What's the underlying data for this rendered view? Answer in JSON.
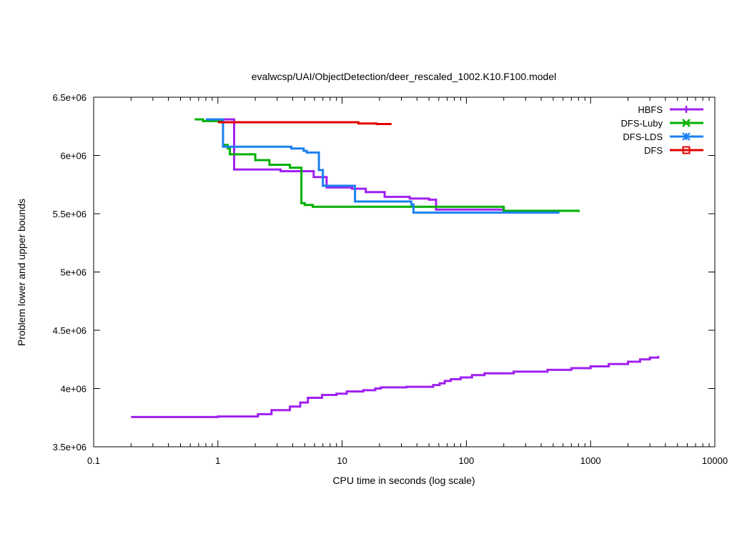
{
  "chart_data": {
    "type": "line",
    "title": "evalwcsp/UAI/ObjectDetection/deer_rescaled_1002.K10.F100.model",
    "xlabel": "CPU time in seconds (log scale)",
    "ylabel": "Problem lower and upper bounds",
    "xscale": "log",
    "xlim": [
      0.1,
      10000
    ],
    "ylim": [
      3500000,
      6500000
    ],
    "x_ticks": [
      0.1,
      1,
      10,
      100,
      1000,
      10000
    ],
    "x_tick_labels": [
      "0.1",
      "1",
      "10",
      "100",
      "1000",
      "10000"
    ],
    "y_ticks": [
      3500000,
      4000000,
      4500000,
      5000000,
      5500000,
      6000000,
      6500000
    ],
    "y_tick_labels": [
      "3.5e+06",
      "4e+06",
      "4.5e+06",
      "5e+06",
      "5.5e+06",
      "6e+06",
      "6.5e+06"
    ],
    "legend_position": "top-right",
    "series": [
      {
        "name": "HBFS",
        "color": "#a020f0",
        "marker": "plus",
        "lines": [
          [
            [
              1.0,
              6310000
            ],
            [
              1.35,
              6310000
            ],
            [
              1.35,
              5880000
            ],
            [
              3.2,
              5880000
            ],
            [
              3.2,
              5865000
            ],
            [
              5.9,
              5865000
            ],
            [
              5.9,
              5815000
            ],
            [
              7.5,
              5815000
            ],
            [
              7.5,
              5725000
            ],
            [
              12.0,
              5725000
            ],
            [
              12.0,
              5715000
            ],
            [
              15.5,
              5715000
            ],
            [
              15.5,
              5685000
            ],
            [
              22.0,
              5685000
            ],
            [
              22.0,
              5645000
            ],
            [
              35.0,
              5645000
            ],
            [
              35.0,
              5630000
            ],
            [
              50.0,
              5630000
            ],
            [
              50.0,
              5620000
            ],
            [
              57.0,
              5620000
            ],
            [
              57.0,
              5535000
            ],
            [
              200.0,
              5535000
            ],
            [
              200.0,
              5520000
            ],
            [
              290.0,
              5520000
            ]
          ],
          [
            [
              0.2,
              3755000
            ],
            [
              1.0,
              3755000
            ],
            [
              1.0,
              3760000
            ],
            [
              2.1,
              3760000
            ],
            [
              2.1,
              3780000
            ],
            [
              2.7,
              3780000
            ],
            [
              2.7,
              3815000
            ],
            [
              3.8,
              3815000
            ],
            [
              3.8,
              3845000
            ],
            [
              4.6,
              3845000
            ],
            [
              4.6,
              3880000
            ],
            [
              5.3,
              3880000
            ],
            [
              5.3,
              3920000
            ],
            [
              6.9,
              3920000
            ],
            [
              6.9,
              3945000
            ],
            [
              9.0,
              3945000
            ],
            [
              9.0,
              3955000
            ],
            [
              10.9,
              3955000
            ],
            [
              10.9,
              3975000
            ],
            [
              14.8,
              3975000
            ],
            [
              14.8,
              3985000
            ],
            [
              18.5,
              3985000
            ],
            [
              18.5,
              4000000
            ],
            [
              20.5,
              4000000
            ],
            [
              20.5,
              4010000
            ],
            [
              33.0,
              4010000
            ],
            [
              33.0,
              4015000
            ],
            [
              54.0,
              4015000
            ],
            [
              54.0,
              4030000
            ],
            [
              61.0,
              4030000
            ],
            [
              61.0,
              4045000
            ],
            [
              67.0,
              4045000
            ],
            [
              67.0,
              4065000
            ],
            [
              75.0,
              4065000
            ],
            [
              75.0,
              4080000
            ],
            [
              90.0,
              4080000
            ],
            [
              90.0,
              4095000
            ],
            [
              111.0,
              4095000
            ],
            [
              111.0,
              4115000
            ],
            [
              140.0,
              4115000
            ],
            [
              140.0,
              4130000
            ],
            [
              240.0,
              4130000
            ],
            [
              240.0,
              4145000
            ],
            [
              450.0,
              4145000
            ],
            [
              450.0,
              4160000
            ],
            [
              700.0,
              4160000
            ],
            [
              700.0,
              4175000
            ],
            [
              1000.0,
              4175000
            ],
            [
              1000.0,
              4190000
            ],
            [
              1400.0,
              4190000
            ],
            [
              1400.0,
              4210000
            ],
            [
              2000.0,
              4210000
            ],
            [
              2000.0,
              4230000
            ],
            [
              2500.0,
              4230000
            ],
            [
              2500.0,
              4250000
            ],
            [
              3000.0,
              4250000
            ],
            [
              3000.0,
              4265000
            ],
            [
              3500.0,
              4265000
            ],
            [
              3500.0,
              4280000
            ]
          ]
        ]
      },
      {
        "name": "DFS-Luby",
        "color": "#00b000",
        "marker": "cross",
        "lines": [
          [
            [
              0.65,
              6310000
            ],
            [
              0.76,
              6310000
            ],
            [
              0.76,
              6295000
            ],
            [
              1.1,
              6295000
            ],
            [
              1.1,
              6090000
            ],
            [
              1.2,
              6090000
            ],
            [
              1.2,
              6060000
            ],
            [
              1.25,
              6060000
            ],
            [
              1.25,
              6010000
            ],
            [
              2.0,
              6010000
            ],
            [
              2.0,
              5960000
            ],
            [
              2.6,
              5960000
            ],
            [
              2.6,
              5920000
            ],
            [
              3.8,
              5920000
            ],
            [
              3.8,
              5895000
            ],
            [
              4.7,
              5895000
            ],
            [
              4.7,
              5590000
            ],
            [
              5.0,
              5590000
            ],
            [
              5.0,
              5575000
            ],
            [
              5.8,
              5575000
            ],
            [
              5.8,
              5560000
            ],
            [
              200.0,
              5560000
            ],
            [
              200.0,
              5525000
            ],
            [
              800.0,
              5525000
            ],
            [
              800.0,
              5515000
            ]
          ]
        ]
      },
      {
        "name": "DFS-LDS",
        "color": "#1a80f0",
        "marker": "star",
        "lines": [
          [
            [
              0.8,
              6310000
            ],
            [
              1.1,
              6310000
            ],
            [
              1.1,
              6075000
            ],
            [
              3.9,
              6075000
            ],
            [
              3.9,
              6060000
            ],
            [
              4.9,
              6060000
            ],
            [
              4.9,
              6040000
            ],
            [
              5.2,
              6040000
            ],
            [
              5.2,
              6025000
            ],
            [
              6.5,
              6025000
            ],
            [
              6.5,
              5875000
            ],
            [
              7.0,
              5875000
            ],
            [
              7.0,
              5740000
            ],
            [
              12.7,
              5740000
            ],
            [
              12.7,
              5605000
            ],
            [
              36.0,
              5605000
            ],
            [
              36.0,
              5580000
            ],
            [
              37.5,
              5580000
            ],
            [
              37.5,
              5510000
            ],
            [
              550.0,
              5510000
            ],
            [
              550.0,
              5500000
            ]
          ]
        ]
      },
      {
        "name": "DFS",
        "color": "#e00000",
        "marker": "square",
        "lines": [
          [
            [
              1.0,
              6285000
            ],
            [
              13.5,
              6285000
            ],
            [
              13.5,
              6275000
            ],
            [
              19.0,
              6275000
            ],
            [
              19.0,
              6270000
            ],
            [
              25.0,
              6270000
            ]
          ]
        ]
      }
    ]
  }
}
